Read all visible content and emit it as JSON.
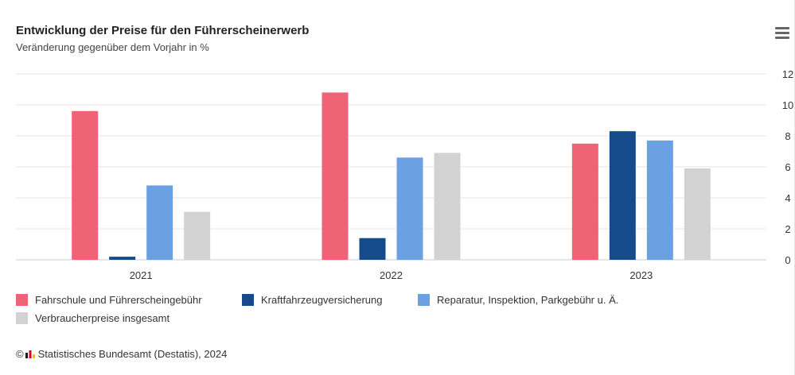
{
  "header": {
    "title": "Entwicklung der Preise für den Führerscheinerwerb",
    "subtitle": "Veränderung gegenüber dem Vorjahr in %"
  },
  "credit": {
    "copyright": "©",
    "text": "Statistisches Bundesamt (Destatis), 2024"
  },
  "menu_icon": "hamburger-menu-icon",
  "chart_data": {
    "type": "bar",
    "title": "Entwicklung der Preise für den Führerscheinerwerb",
    "subtitle": "Veränderung gegenüber dem Vorjahr in %",
    "categories": [
      "2021",
      "2022",
      "2023"
    ],
    "series": [
      {
        "name": "Fahrschule und Führerscheingebühr",
        "color": "#f06377",
        "values": [
          9.6,
          10.8,
          7.5
        ]
      },
      {
        "name": "Kraftfahrzeugversicherung",
        "color": "#154b8b",
        "values": [
          0.2,
          1.4,
          8.3
        ]
      },
      {
        "name": "Reparatur, Inspektion, Parkgebühr u. Ä.",
        "color": "#6ba0e3",
        "values": [
          4.8,
          6.6,
          7.7
        ]
      },
      {
        "name": "Verbraucherpreise insgesamt",
        "color": "#d2d2d2",
        "values": [
          3.1,
          6.9,
          5.9
        ]
      }
    ],
    "yticks": [
      "0",
      "2",
      "4",
      "6",
      "8",
      "10",
      "12"
    ],
    "ylim": [
      0,
      12
    ],
    "y_axis_side": "right",
    "grid": true,
    "legend_position": "bottom"
  }
}
